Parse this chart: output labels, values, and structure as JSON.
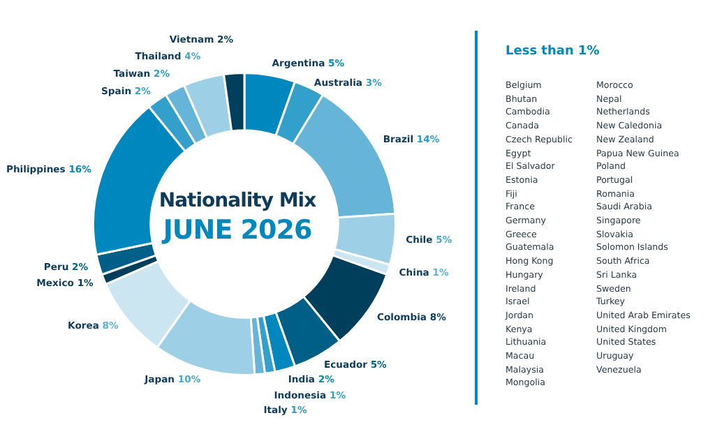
{
  "chart_data": [
    {
      "type": "donut",
      "title": "Nationality Mix",
      "subtitle": "JUNE 2026",
      "categories": [
        "Argentina",
        "Australia",
        "Brazil",
        "Chile",
        "China",
        "Colombia",
        "Ecuador",
        "India",
        "Indonesia",
        "Italy",
        "Japan",
        "Korea",
        "Mexico",
        "Peru",
        "Philippines",
        "Spain",
        "Taiwan",
        "Thailand",
        "Vietnam"
      ],
      "values": [
        5,
        3,
        14,
        5,
        1,
        8,
        5,
        2,
        1,
        1,
        10,
        8,
        1,
        2,
        16,
        2,
        2,
        4,
        2
      ],
      "value_labels": [
        "5%",
        "3%",
        "14%",
        "5%",
        "1%",
        "8%",
        "5%",
        "2%",
        "1%",
        "1%",
        "10%",
        "8%",
        "1%",
        "2%",
        "16%",
        "2%",
        "2%",
        "4%",
        "2%"
      ],
      "colors": [
        "#0087bd",
        "#33a0cc",
        "#66b4d8",
        "#9dd0e6",
        "#cce6f1",
        "#003f5c",
        "#005f87",
        "#0087bd",
        "#33a0cc",
        "#66b4d8",
        "#9dd0e6",
        "#cce6f1",
        "#003f5c",
        "#005f87",
        "#0087bd",
        "#33a0cc",
        "#66b4d8",
        "#9dd0e6",
        "#003f5c"
      ],
      "legend": false
    },
    {
      "type": "other",
      "title": "Less than 1%",
      "annotations": [
        "Belgium",
        "Bhutan",
        "Cambodia",
        "Canada",
        "Czech Republic",
        "Egypt",
        "El Salvador",
        "Estonia",
        "Fiji",
        "France",
        "Germany",
        "Greece",
        "Guatemala",
        "Hong Kong",
        "Hungary",
        "Ireland",
        "Israel",
        "Jordan",
        "Kenya",
        "Lithuania",
        "Macau",
        "Malaysia",
        "Mongolia",
        "Morocco",
        "Nepal",
        "Netherlands",
        "New Caledonia",
        "New Zealand",
        "Papua New Guinea",
        "Poland",
        "Portugal",
        "Romania",
        "Saudi Arabia",
        "Singapore",
        "Slovakia",
        "Solomon Islands",
        "South Africa",
        "Sri Lanka",
        "Sweden",
        "Turkey",
        "United Arab Emirates",
        "United Kingdom",
        "United States",
        "Uruguay",
        "Venezuela"
      ]
    }
  ]
}
